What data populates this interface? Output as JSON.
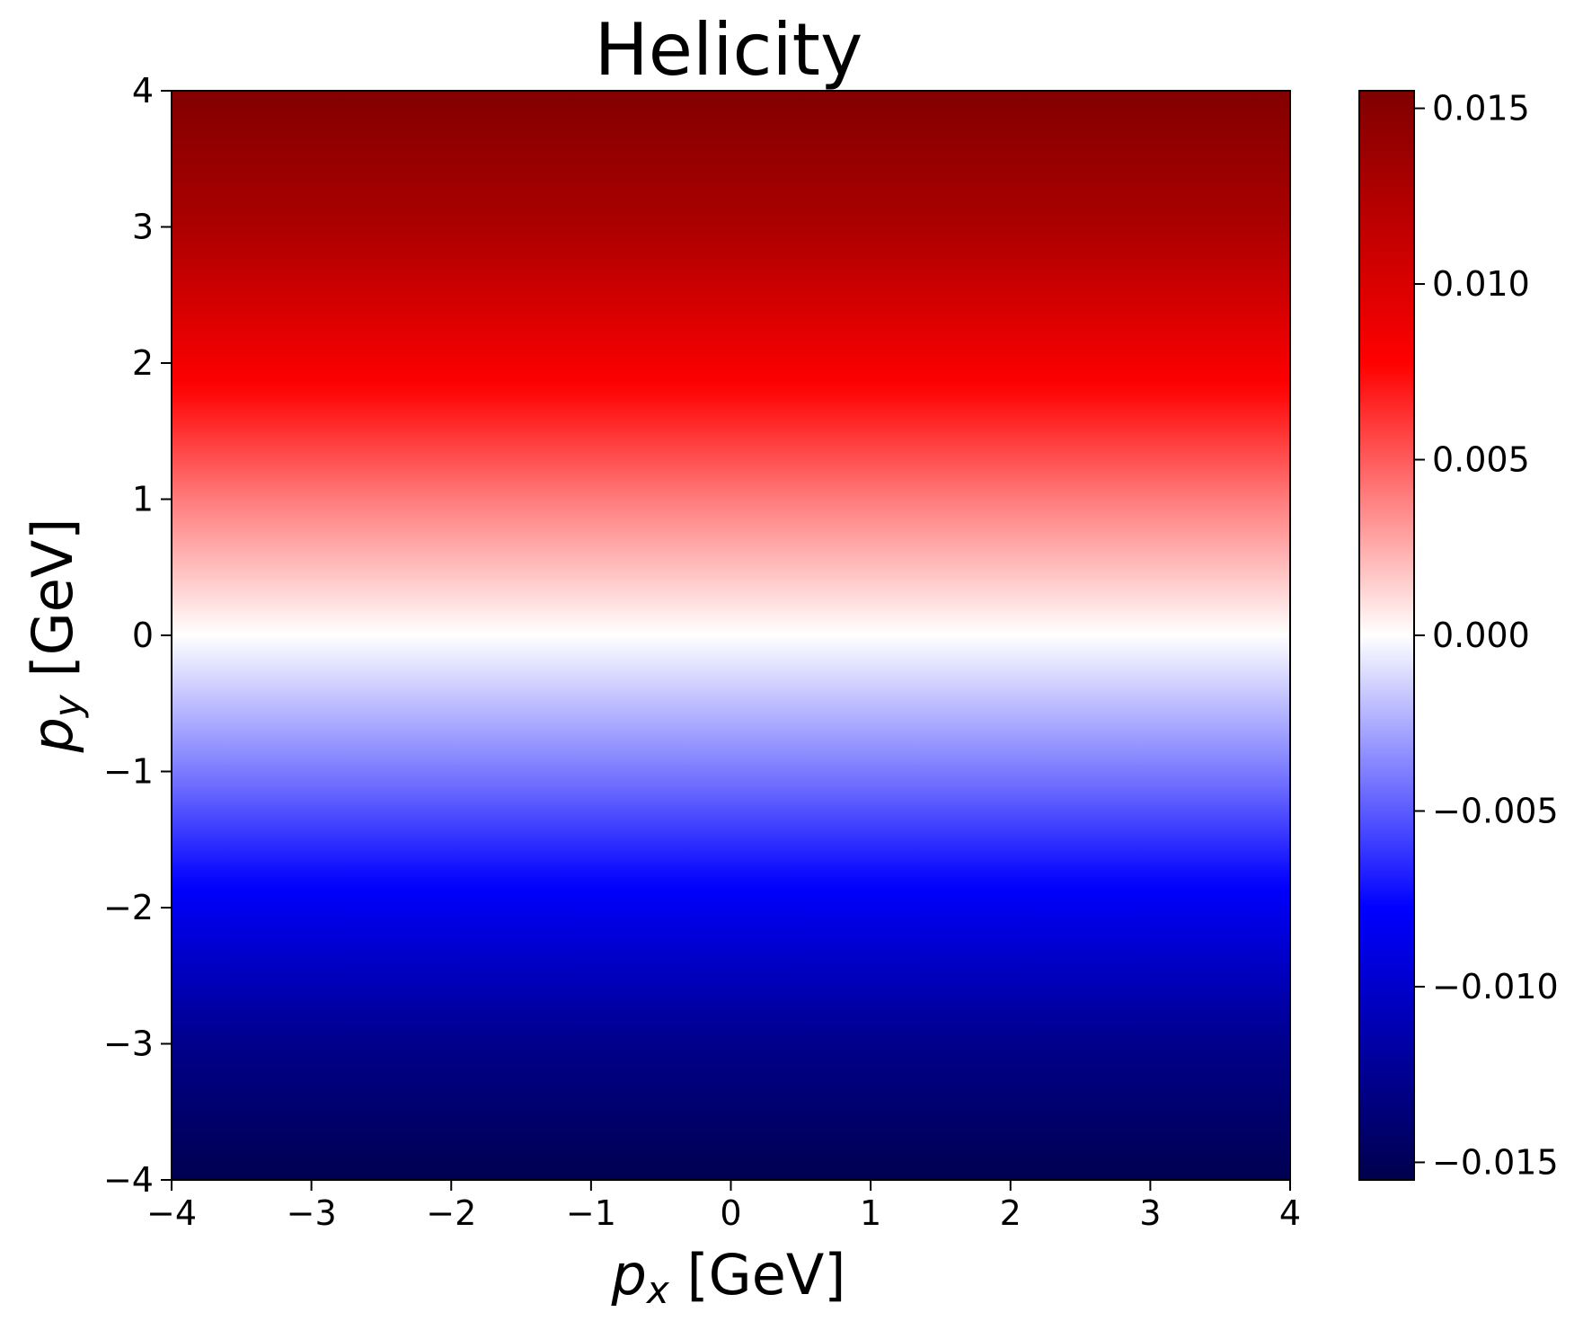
{
  "chart_data": {
    "type": "heatmap",
    "title": "Helicity",
    "xlabel": {
      "var": "p",
      "sub": "x",
      "unit": " [GeV]"
    },
    "ylabel": {
      "var": "p",
      "sub": "y",
      "unit": " [GeV]"
    },
    "xlim": [
      -4,
      4
    ],
    "ylim": [
      -4,
      4
    ],
    "xticks": [
      -4,
      -3,
      -2,
      -1,
      0,
      1,
      2,
      3,
      4
    ],
    "yticks": [
      -4,
      -3,
      -2,
      -1,
      0,
      1,
      2,
      3,
      4
    ],
    "xtick_labels": [
      "−4",
      "−3",
      "−2",
      "−1",
      "0",
      "1",
      "2",
      "3",
      "4"
    ],
    "ytick_labels": [
      "−4",
      "−3",
      "−2",
      "−1",
      "0",
      "1",
      "2",
      "3",
      "4"
    ],
    "colormap": "seismic",
    "colormap_stops": [
      "#00004c",
      "#0000ff",
      "#ffffff",
      "#ff0000",
      "#7f0000"
    ],
    "colorbar": {
      "vmin": -0.0155,
      "vmax": 0.0155,
      "ticks": [
        -0.015,
        -0.01,
        -0.005,
        0.0,
        0.005,
        0.01,
        0.015
      ],
      "tick_labels": [
        "−0.015",
        "−0.010",
        "−0.005",
        "0.000",
        "0.005",
        "0.010",
        "0.015"
      ]
    },
    "profile_py": [
      -4,
      -3,
      -2,
      -1,
      0,
      1,
      2,
      3,
      4
    ],
    "profile_value": [
      -0.0153,
      -0.0128,
      -0.0085,
      -0.004,
      0.0,
      0.004,
      0.0085,
      0.0128,
      0.0153
    ],
    "grid": false
  }
}
